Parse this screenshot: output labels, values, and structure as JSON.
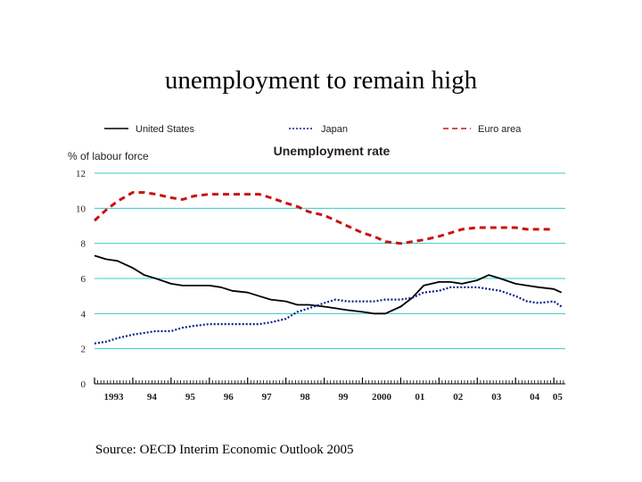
{
  "slide": {
    "title": "unemployment to remain high",
    "source": "Source: OECD Interim Economic Outlook 2005"
  },
  "chart_data": {
    "type": "line",
    "title": "Unemployment rate",
    "ylabel": "% of labour force",
    "xlabel": "",
    "ylim": [
      0,
      12
    ],
    "xlim": [
      1993.0,
      2005.3
    ],
    "yticks": [
      "0",
      "2",
      "4",
      "6",
      "8",
      "10",
      "12"
    ],
    "xticks": [
      {
        "label": "1993",
        "x": 1993.5
      },
      {
        "label": "94",
        "x": 1994.5
      },
      {
        "label": "95",
        "x": 1995.5
      },
      {
        "label": "96",
        "x": 1996.5
      },
      {
        "label": "97",
        "x": 1997.5
      },
      {
        "label": "98",
        "x": 1998.5
      },
      {
        "label": "99",
        "x": 1999.5
      },
      {
        "label": "2000",
        "x": 2000.5
      },
      {
        "label": "01",
        "x": 2001.5
      },
      {
        "label": "02",
        "x": 2002.5
      },
      {
        "label": "03",
        "x": 2003.5
      },
      {
        "label": "04",
        "x": 2004.5
      },
      {
        "label": "05",
        "x": 2005.1
      }
    ],
    "grid": true,
    "legend_position": "top",
    "series": [
      {
        "name": "United States",
        "style": "solid",
        "color": "#000000",
        "x": [
          1993.0,
          1993.3,
          1993.6,
          1994.0,
          1994.3,
          1994.6,
          1995.0,
          1995.3,
          1995.6,
          1996.0,
          1996.3,
          1996.6,
          1997.0,
          1997.3,
          1997.6,
          1998.0,
          1998.3,
          1998.6,
          1999.0,
          1999.3,
          1999.6,
          2000.0,
          2000.3,
          2000.6,
          2001.0,
          2001.3,
          2001.6,
          2002.0,
          2002.3,
          2002.6,
          2003.0,
          2003.3,
          2003.6,
          2004.0,
          2004.3,
          2004.6,
          2005.0,
          2005.2
        ],
        "y": [
          7.3,
          7.1,
          7.0,
          6.6,
          6.2,
          6.0,
          5.7,
          5.6,
          5.6,
          5.6,
          5.5,
          5.3,
          5.2,
          5.0,
          4.8,
          4.7,
          4.5,
          4.5,
          4.4,
          4.3,
          4.2,
          4.1,
          4.0,
          4.0,
          4.4,
          4.9,
          5.6,
          5.8,
          5.8,
          5.7,
          5.9,
          6.2,
          6.0,
          5.7,
          5.6,
          5.5,
          5.4,
          5.2
        ]
      },
      {
        "name": "Japan",
        "style": "dotted",
        "color": "#0a1f8f",
        "x": [
          1993.0,
          1993.3,
          1993.6,
          1994.0,
          1994.3,
          1994.6,
          1995.0,
          1995.3,
          1995.6,
          1996.0,
          1996.3,
          1996.6,
          1997.0,
          1997.3,
          1997.6,
          1998.0,
          1998.3,
          1998.6,
          1999.0,
          1999.3,
          1999.6,
          2000.0,
          2000.3,
          2000.6,
          2001.0,
          2001.3,
          2001.6,
          2002.0,
          2002.3,
          2002.6,
          2003.0,
          2003.3,
          2003.6,
          2004.0,
          2004.3,
          2004.6,
          2005.0,
          2005.2
        ],
        "y": [
          2.3,
          2.4,
          2.6,
          2.8,
          2.9,
          3.0,
          3.0,
          3.2,
          3.3,
          3.4,
          3.4,
          3.4,
          3.4,
          3.4,
          3.5,
          3.7,
          4.1,
          4.3,
          4.6,
          4.8,
          4.7,
          4.7,
          4.7,
          4.8,
          4.8,
          4.9,
          5.2,
          5.3,
          5.5,
          5.5,
          5.5,
          5.4,
          5.3,
          5.0,
          4.7,
          4.6,
          4.7,
          4.4
        ]
      },
      {
        "name": "Euro area",
        "style": "dashed",
        "color": "#cc1111",
        "x": [
          1993.0,
          1993.3,
          1993.6,
          1994.0,
          1994.3,
          1994.6,
          1995.0,
          1995.3,
          1995.6,
          1996.0,
          1996.3,
          1996.6,
          1997.0,
          1997.3,
          1997.6,
          1998.0,
          1998.3,
          1998.6,
          1999.0,
          1999.3,
          1999.6,
          2000.0,
          2000.3,
          2000.6,
          2001.0,
          2001.3,
          2001.6,
          2002.0,
          2002.3,
          2002.6,
          2003.0,
          2003.3,
          2003.6,
          2004.0,
          2004.3,
          2004.6,
          2005.0
        ],
        "y": [
          9.3,
          9.9,
          10.4,
          10.9,
          10.9,
          10.8,
          10.6,
          10.5,
          10.7,
          10.8,
          10.8,
          10.8,
          10.8,
          10.8,
          10.6,
          10.3,
          10.1,
          9.8,
          9.6,
          9.3,
          9.0,
          8.6,
          8.4,
          8.1,
          8.0,
          8.1,
          8.2,
          8.4,
          8.6,
          8.8,
          8.9,
          8.9,
          8.9,
          8.9,
          8.8,
          8.8,
          8.8
        ]
      }
    ]
  },
  "colors": {
    "gridline": "#33cccc",
    "axis": "#000000"
  }
}
